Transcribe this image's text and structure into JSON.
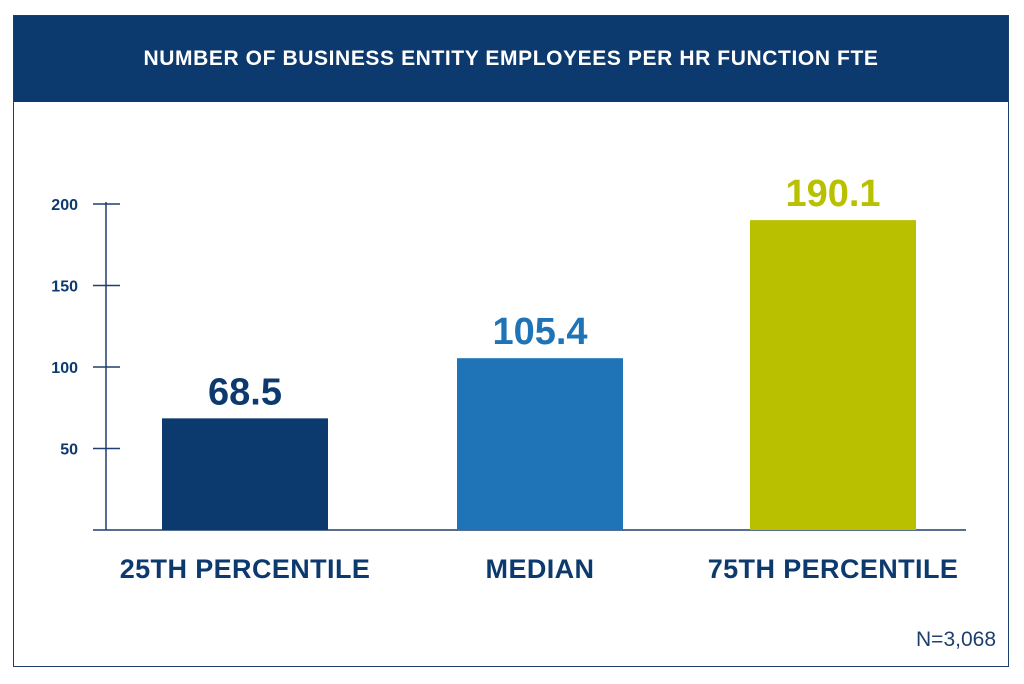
{
  "chart_data": {
    "type": "bar",
    "title": "NUMBER OF BUSINESS ENTITY EMPLOYEES PER HR FUNCTION FTE",
    "categories": [
      "25TH PERCENTILE",
      "MEDIAN",
      "75TH PERCENTILE"
    ],
    "values": [
      68.5,
      105.4,
      190.1
    ],
    "value_labels": [
      "68.5",
      "105.4",
      "190.1"
    ],
    "colors": [
      "#0d3a6e",
      "#1f73b7",
      "#b8c000"
    ],
    "yticks": [
      50,
      100,
      150,
      200
    ],
    "ylim": [
      0,
      200
    ],
    "grid": false,
    "legend": "none",
    "note": "N=3,068"
  }
}
